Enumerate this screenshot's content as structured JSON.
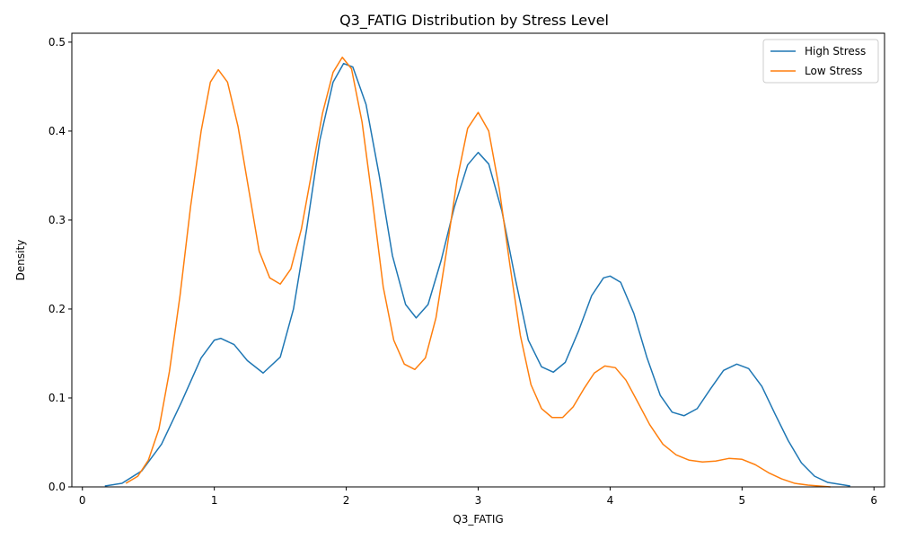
{
  "chart_data": {
    "type": "line",
    "title": "Q3_FATIG Distribution by Stress Level",
    "xlabel": "Q3_FATIG",
    "ylabel": "Density",
    "xlim": [
      -0.08,
      6.08
    ],
    "ylim": [
      0,
      0.51
    ],
    "x_ticks": [
      0,
      1,
      2,
      3,
      4,
      5,
      6
    ],
    "y_ticks": [
      0.0,
      0.1,
      0.2,
      0.3,
      0.4,
      0.5
    ],
    "x_tick_labels": [
      "0",
      "1",
      "2",
      "3",
      "4",
      "5",
      "6"
    ],
    "y_tick_labels": [
      "0.0",
      "0.1",
      "0.2",
      "0.3",
      "0.4",
      "0.5"
    ],
    "grid": false,
    "legend_position": "top-right",
    "series": [
      {
        "name": "High Stress",
        "color": "#1f77b4",
        "points": [
          [
            0.17,
            0.001
          ],
          [
            0.3,
            0.004
          ],
          [
            0.45,
            0.018
          ],
          [
            0.6,
            0.048
          ],
          [
            0.75,
            0.095
          ],
          [
            0.9,
            0.145
          ],
          [
            1.0,
            0.165
          ],
          [
            1.05,
            0.167
          ],
          [
            1.15,
            0.16
          ],
          [
            1.25,
            0.142
          ],
          [
            1.37,
            0.128
          ],
          [
            1.5,
            0.146
          ],
          [
            1.6,
            0.2
          ],
          [
            1.7,
            0.29
          ],
          [
            1.8,
            0.39
          ],
          [
            1.9,
            0.455
          ],
          [
            1.98,
            0.476
          ],
          [
            2.05,
            0.472
          ],
          [
            2.15,
            0.43
          ],
          [
            2.25,
            0.35
          ],
          [
            2.35,
            0.26
          ],
          [
            2.45,
            0.205
          ],
          [
            2.53,
            0.19
          ],
          [
            2.62,
            0.205
          ],
          [
            2.72,
            0.255
          ],
          [
            2.82,
            0.315
          ],
          [
            2.92,
            0.362
          ],
          [
            3.0,
            0.376
          ],
          [
            3.08,
            0.363
          ],
          [
            3.18,
            0.31
          ],
          [
            3.28,
            0.235
          ],
          [
            3.38,
            0.165
          ],
          [
            3.48,
            0.135
          ],
          [
            3.57,
            0.129
          ],
          [
            3.66,
            0.14
          ],
          [
            3.76,
            0.175
          ],
          [
            3.86,
            0.215
          ],
          [
            3.95,
            0.235
          ],
          [
            4.0,
            0.237
          ],
          [
            4.08,
            0.23
          ],
          [
            4.18,
            0.195
          ],
          [
            4.28,
            0.145
          ],
          [
            4.38,
            0.103
          ],
          [
            4.47,
            0.084
          ],
          [
            4.56,
            0.08
          ],
          [
            4.66,
            0.088
          ],
          [
            4.76,
            0.11
          ],
          [
            4.86,
            0.131
          ],
          [
            4.96,
            0.138
          ],
          [
            5.05,
            0.133
          ],
          [
            5.15,
            0.113
          ],
          [
            5.25,
            0.082
          ],
          [
            5.35,
            0.052
          ],
          [
            5.45,
            0.027
          ],
          [
            5.55,
            0.012
          ],
          [
            5.65,
            0.005
          ],
          [
            5.82,
            0.001
          ]
        ]
      },
      {
        "name": "Low Stress",
        "color": "#ff7f0e",
        "points": [
          [
            0.33,
            0.004
          ],
          [
            0.42,
            0.012
          ],
          [
            0.5,
            0.03
          ],
          [
            0.58,
            0.065
          ],
          [
            0.66,
            0.13
          ],
          [
            0.74,
            0.215
          ],
          [
            0.82,
            0.315
          ],
          [
            0.9,
            0.4
          ],
          [
            0.97,
            0.455
          ],
          [
            1.03,
            0.469
          ],
          [
            1.1,
            0.455
          ],
          [
            1.18,
            0.405
          ],
          [
            1.26,
            0.335
          ],
          [
            1.34,
            0.265
          ],
          [
            1.42,
            0.235
          ],
          [
            1.5,
            0.228
          ],
          [
            1.58,
            0.245
          ],
          [
            1.66,
            0.29
          ],
          [
            1.74,
            0.355
          ],
          [
            1.82,
            0.42
          ],
          [
            1.9,
            0.466
          ],
          [
            1.97,
            0.483
          ],
          [
            2.04,
            0.47
          ],
          [
            2.12,
            0.41
          ],
          [
            2.2,
            0.32
          ],
          [
            2.28,
            0.225
          ],
          [
            2.36,
            0.165
          ],
          [
            2.44,
            0.138
          ],
          [
            2.52,
            0.132
          ],
          [
            2.6,
            0.145
          ],
          [
            2.68,
            0.19
          ],
          [
            2.76,
            0.265
          ],
          [
            2.84,
            0.345
          ],
          [
            2.92,
            0.403
          ],
          [
            3.0,
            0.421
          ],
          [
            3.08,
            0.4
          ],
          [
            3.16,
            0.335
          ],
          [
            3.24,
            0.25
          ],
          [
            3.32,
            0.17
          ],
          [
            3.4,
            0.115
          ],
          [
            3.48,
            0.088
          ],
          [
            3.56,
            0.078
          ],
          [
            3.64,
            0.078
          ],
          [
            3.72,
            0.09
          ],
          [
            3.8,
            0.11
          ],
          [
            3.88,
            0.128
          ],
          [
            3.96,
            0.136
          ],
          [
            4.04,
            0.134
          ],
          [
            4.12,
            0.12
          ],
          [
            4.2,
            0.098
          ],
          [
            4.3,
            0.07
          ],
          [
            4.4,
            0.048
          ],
          [
            4.5,
            0.036
          ],
          [
            4.6,
            0.03
          ],
          [
            4.7,
            0.028
          ],
          [
            4.8,
            0.029
          ],
          [
            4.9,
            0.032
          ],
          [
            5.0,
            0.031
          ],
          [
            5.1,
            0.025
          ],
          [
            5.2,
            0.016
          ],
          [
            5.3,
            0.009
          ],
          [
            5.4,
            0.004
          ],
          [
            5.5,
            0.002
          ],
          [
            5.67,
            0.0
          ]
        ]
      }
    ]
  }
}
